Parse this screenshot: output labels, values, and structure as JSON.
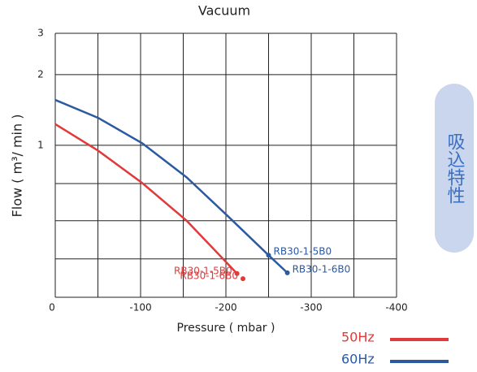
{
  "chart_data": {
    "type": "line",
    "title": "Vacuum",
    "x_label": "Pressure ( mbar )",
    "y_label": "Flow ( m³/ min )",
    "side_label": "吸込特性",
    "log_y": true,
    "grid": true,
    "xlim": [
      0,
      -400
    ],
    "xticks": [
      0,
      -100,
      -200,
      -300,
      -400
    ],
    "minor_xticks": [
      -50,
      -150,
      -250,
      -350
    ],
    "ylim": [
      0.225,
      3
    ],
    "yticks": [
      1,
      2,
      3
    ],
    "minor_yticks": [
      0.687,
      0.477,
      0.328
    ],
    "series": [
      {
        "name": "50Hz",
        "color": "#e03a3a",
        "x": [
          0,
          -50,
          -102,
          -154,
          -213
        ],
        "values": [
          1.23,
          0.95,
          0.69,
          0.477,
          0.284
        ],
        "points": [
          {
            "label": "RB30-1-5B0",
            "x": -213,
            "y": 0.284
          },
          {
            "label": "RB30-1-6B0",
            "x": -220,
            "y": 0.27
          }
        ]
      },
      {
        "name": "60Hz",
        "color": "#2b5aa0",
        "x": [
          0,
          -50,
          -102,
          -154,
          -202,
          -250,
          -272
        ],
        "values": [
          1.56,
          1.31,
          1.02,
          0.73,
          0.5,
          0.34,
          0.286
        ],
        "points": [
          {
            "label": "RB30-1-5B0",
            "x": -250,
            "y": 0.34
          },
          {
            "label": "RB30-1-6B0",
            "x": -272,
            "y": 0.286
          }
        ]
      }
    ]
  }
}
